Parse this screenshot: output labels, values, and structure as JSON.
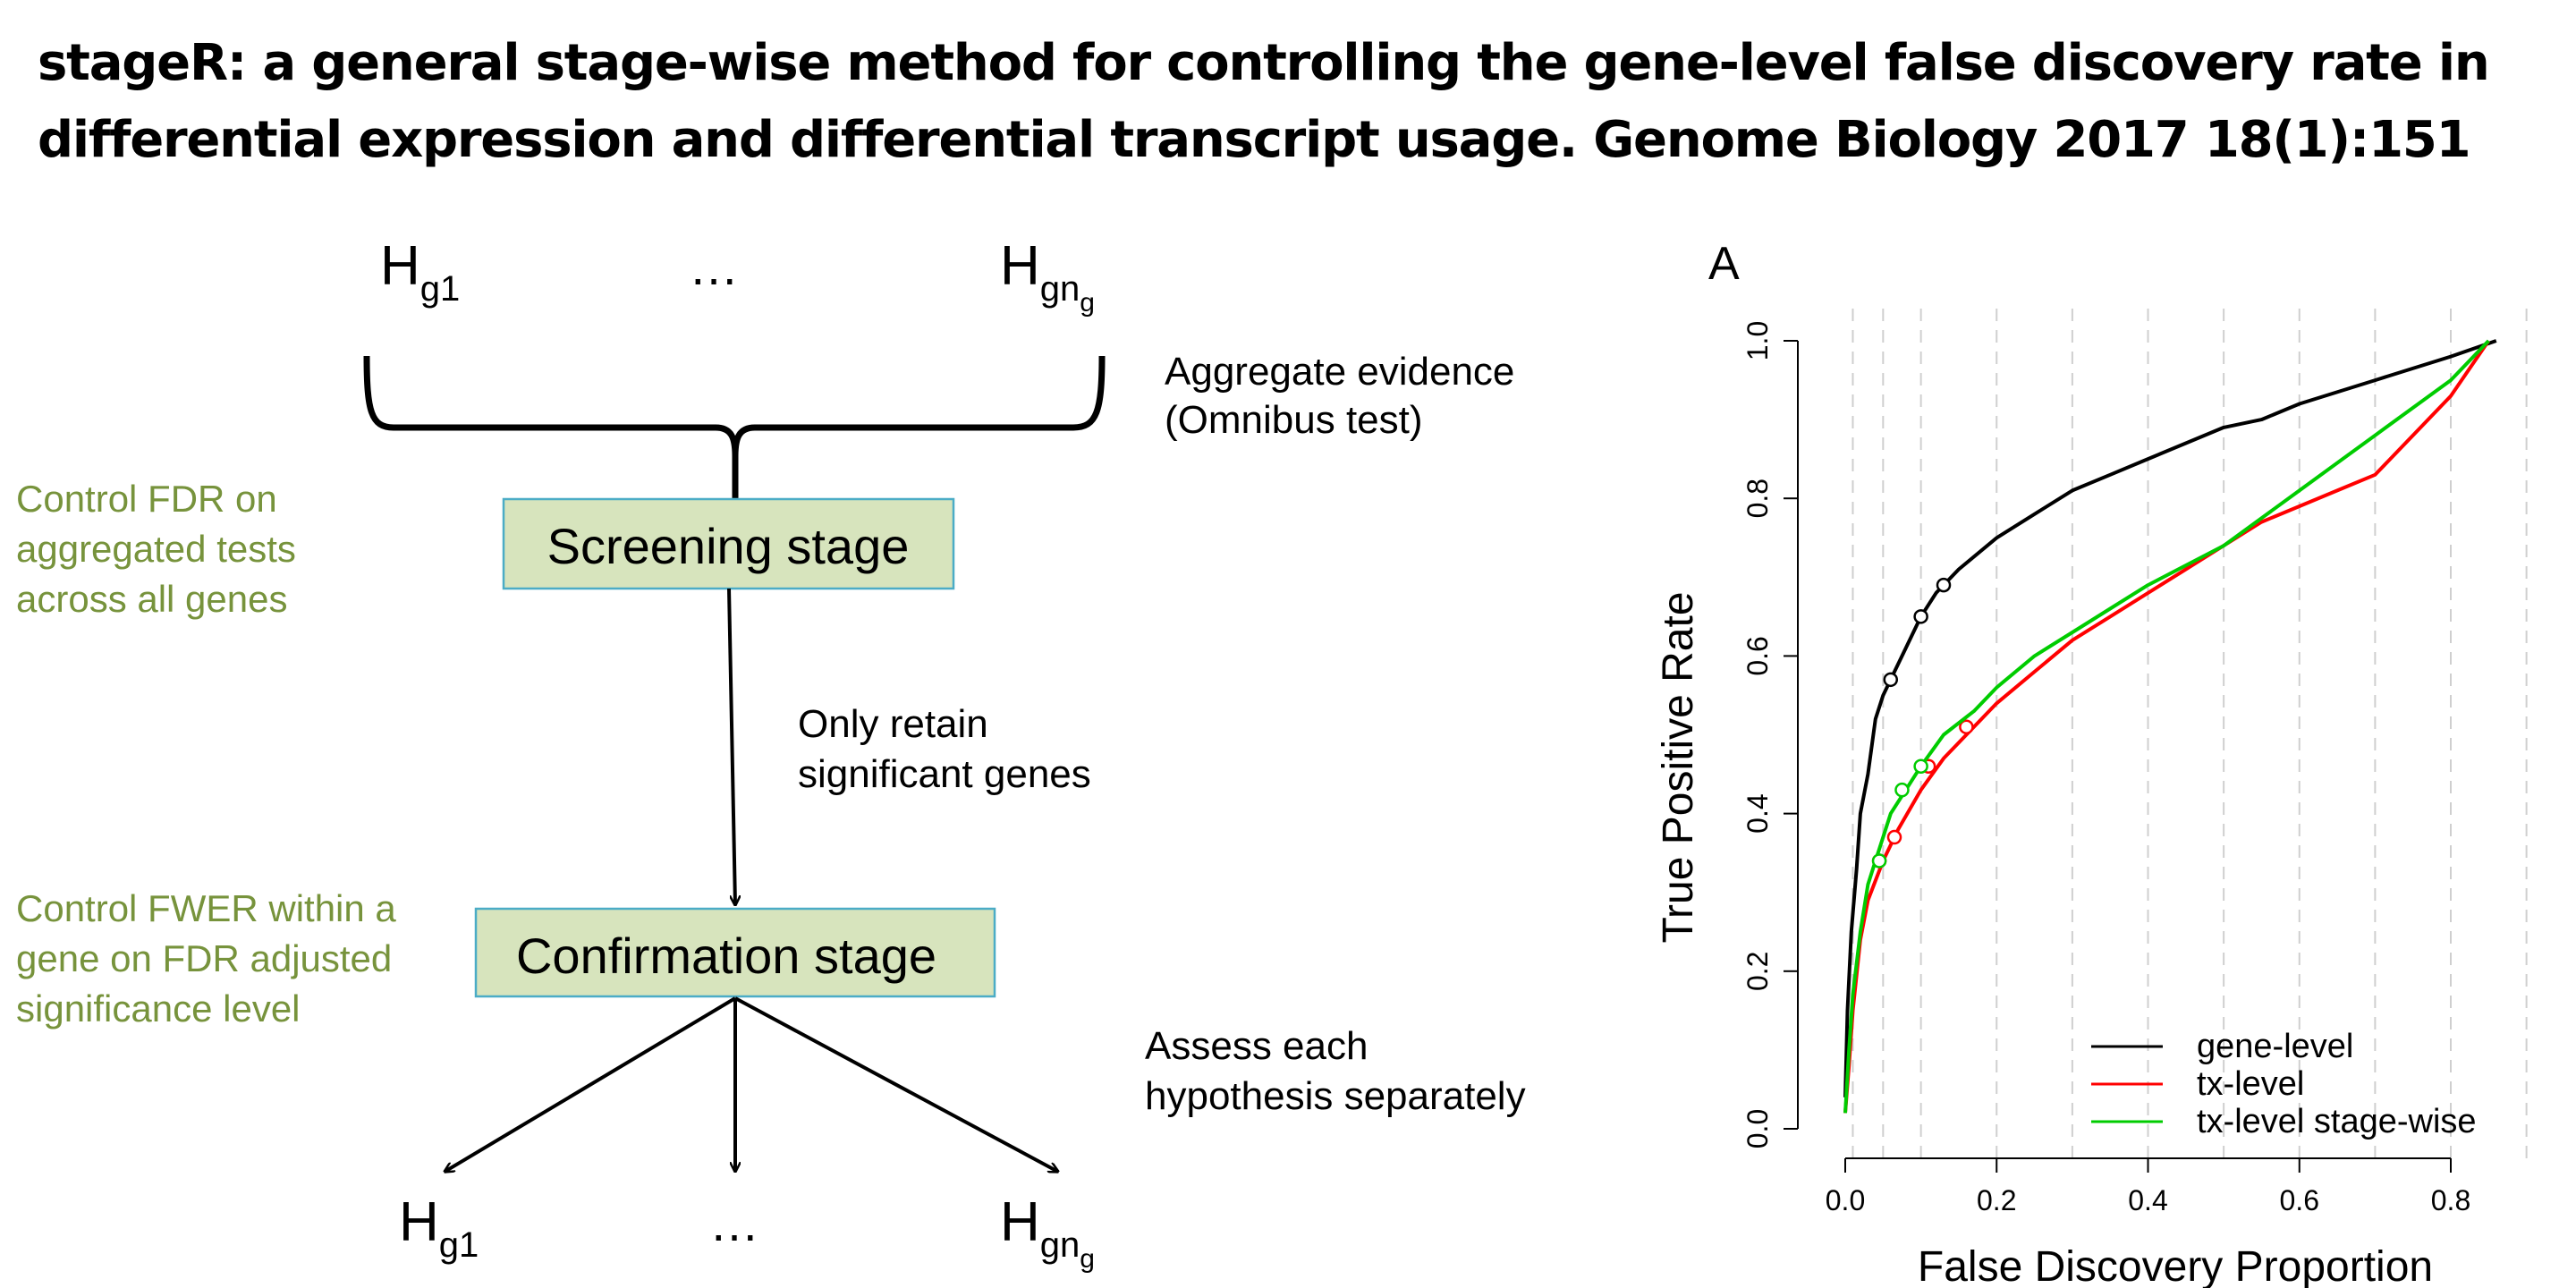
{
  "title": {
    "line1": "stageR: a general stage-wise method for controlling the gene-level false discovery rate in",
    "line2": "differential expression and differential transcript usage. Genome Biology  2017 18(1):151"
  },
  "diagram": {
    "top_hypotheses": [
      {
        "base": "H",
        "sub": "g1",
        "subsub": ""
      },
      {
        "base": "H",
        "sub": "gn",
        "subsub": "g"
      }
    ],
    "ellipsis": "…",
    "aggregate_note": [
      "Aggregate evidence",
      "(Omnibus test)"
    ],
    "screening_stage": "Screening stage",
    "screening_note": [
      "Control FDR on",
      "aggregated tests",
      "across all genes"
    ],
    "retain_note": [
      "Only retain",
      "significant genes"
    ],
    "confirmation_stage": "Confirmation stage",
    "confirmation_note": [
      "Control FWER within a",
      "gene on FDR adjusted",
      "significance level"
    ],
    "assess_note": [
      "Assess each",
      "hypothesis separately"
    ],
    "bottom_hypotheses": [
      {
        "base": "H",
        "sub": "g1",
        "subsub": ""
      },
      {
        "base": "H",
        "sub": "gn",
        "subsub": "g"
      }
    ],
    "colors": {
      "green_text": "#77933c",
      "box_fill": "#d7e4bd",
      "box_border": "#4bacc6"
    }
  },
  "chart_data": {
    "type": "line",
    "panel_label": "A",
    "xlabel": "False Discovery Proportion",
    "ylabel": "True Positive Rate",
    "xlim": [
      0,
      0.9
    ],
    "ylim": [
      0,
      1.0
    ],
    "xticks": [
      "0.0",
      "0.2",
      "0.4",
      "0.6",
      "0.8"
    ],
    "yticks": [
      "0.0",
      "0.2",
      "0.4",
      "0.6",
      "0.8",
      "1.0"
    ],
    "vlines": [
      0.01,
      0.05,
      0.1,
      0.2,
      0.3,
      0.4,
      0.5,
      0.6,
      0.7,
      0.8,
      0.9
    ],
    "grid": "dashed vertical lines at FDR thresholds",
    "legend_position": "bottom-right",
    "series": [
      {
        "name": "gene-level",
        "color": "#000000",
        "points": [
          [
            0.0,
            0.04
          ],
          [
            0.003,
            0.15
          ],
          [
            0.008,
            0.25
          ],
          [
            0.015,
            0.33
          ],
          [
            0.02,
            0.4
          ],
          [
            0.03,
            0.45
          ],
          [
            0.04,
            0.52
          ],
          [
            0.05,
            0.55
          ],
          [
            0.06,
            0.57
          ],
          [
            0.08,
            0.61
          ],
          [
            0.1,
            0.65
          ],
          [
            0.12,
            0.68
          ],
          [
            0.15,
            0.71
          ],
          [
            0.2,
            0.75
          ],
          [
            0.25,
            0.78
          ],
          [
            0.3,
            0.81
          ],
          [
            0.35,
            0.83
          ],
          [
            0.4,
            0.85
          ],
          [
            0.45,
            0.87
          ],
          [
            0.5,
            0.89
          ],
          [
            0.55,
            0.9
          ],
          [
            0.6,
            0.92
          ],
          [
            0.7,
            0.95
          ],
          [
            0.8,
            0.98
          ],
          [
            0.86,
            1.0
          ]
        ],
        "markers": [
          [
            0.06,
            0.57
          ],
          [
            0.1,
            0.65
          ],
          [
            0.13,
            0.69
          ]
        ]
      },
      {
        "name": "tx-level",
        "color": "#ff0000",
        "points": [
          [
            0.0,
            0.02
          ],
          [
            0.005,
            0.08
          ],
          [
            0.01,
            0.15
          ],
          [
            0.02,
            0.24
          ],
          [
            0.03,
            0.29
          ],
          [
            0.05,
            0.34
          ],
          [
            0.07,
            0.38
          ],
          [
            0.1,
            0.43
          ],
          [
            0.13,
            0.47
          ],
          [
            0.16,
            0.5
          ],
          [
            0.2,
            0.54
          ],
          [
            0.25,
            0.58
          ],
          [
            0.3,
            0.62
          ],
          [
            0.35,
            0.65
          ],
          [
            0.4,
            0.68
          ],
          [
            0.45,
            0.71
          ],
          [
            0.5,
            0.74
          ],
          [
            0.55,
            0.77
          ],
          [
            0.6,
            0.79
          ],
          [
            0.65,
            0.81
          ],
          [
            0.7,
            0.83
          ],
          [
            0.8,
            0.93
          ],
          [
            0.85,
            1.0
          ]
        ],
        "markers": [
          [
            0.045,
            0.34
          ],
          [
            0.065,
            0.37
          ],
          [
            0.11,
            0.46
          ],
          [
            0.16,
            0.51
          ]
        ]
      },
      {
        "name": "tx-level stage-wise",
        "color": "#00cc00",
        "points": [
          [
            0.0,
            0.02
          ],
          [
            0.005,
            0.1
          ],
          [
            0.01,
            0.17
          ],
          [
            0.02,
            0.25
          ],
          [
            0.03,
            0.31
          ],
          [
            0.04,
            0.34
          ],
          [
            0.06,
            0.4
          ],
          [
            0.08,
            0.43
          ],
          [
            0.1,
            0.46
          ],
          [
            0.13,
            0.5
          ],
          [
            0.17,
            0.53
          ],
          [
            0.2,
            0.56
          ],
          [
            0.25,
            0.6
          ],
          [
            0.3,
            0.63
          ],
          [
            0.35,
            0.66
          ],
          [
            0.4,
            0.69
          ],
          [
            0.5,
            0.74
          ],
          [
            0.6,
            0.81
          ],
          [
            0.7,
            0.88
          ],
          [
            0.8,
            0.95
          ],
          [
            0.85,
            1.0
          ]
        ],
        "markers": [
          [
            0.045,
            0.34
          ],
          [
            0.075,
            0.43
          ],
          [
            0.1,
            0.46
          ]
        ]
      }
    ]
  }
}
